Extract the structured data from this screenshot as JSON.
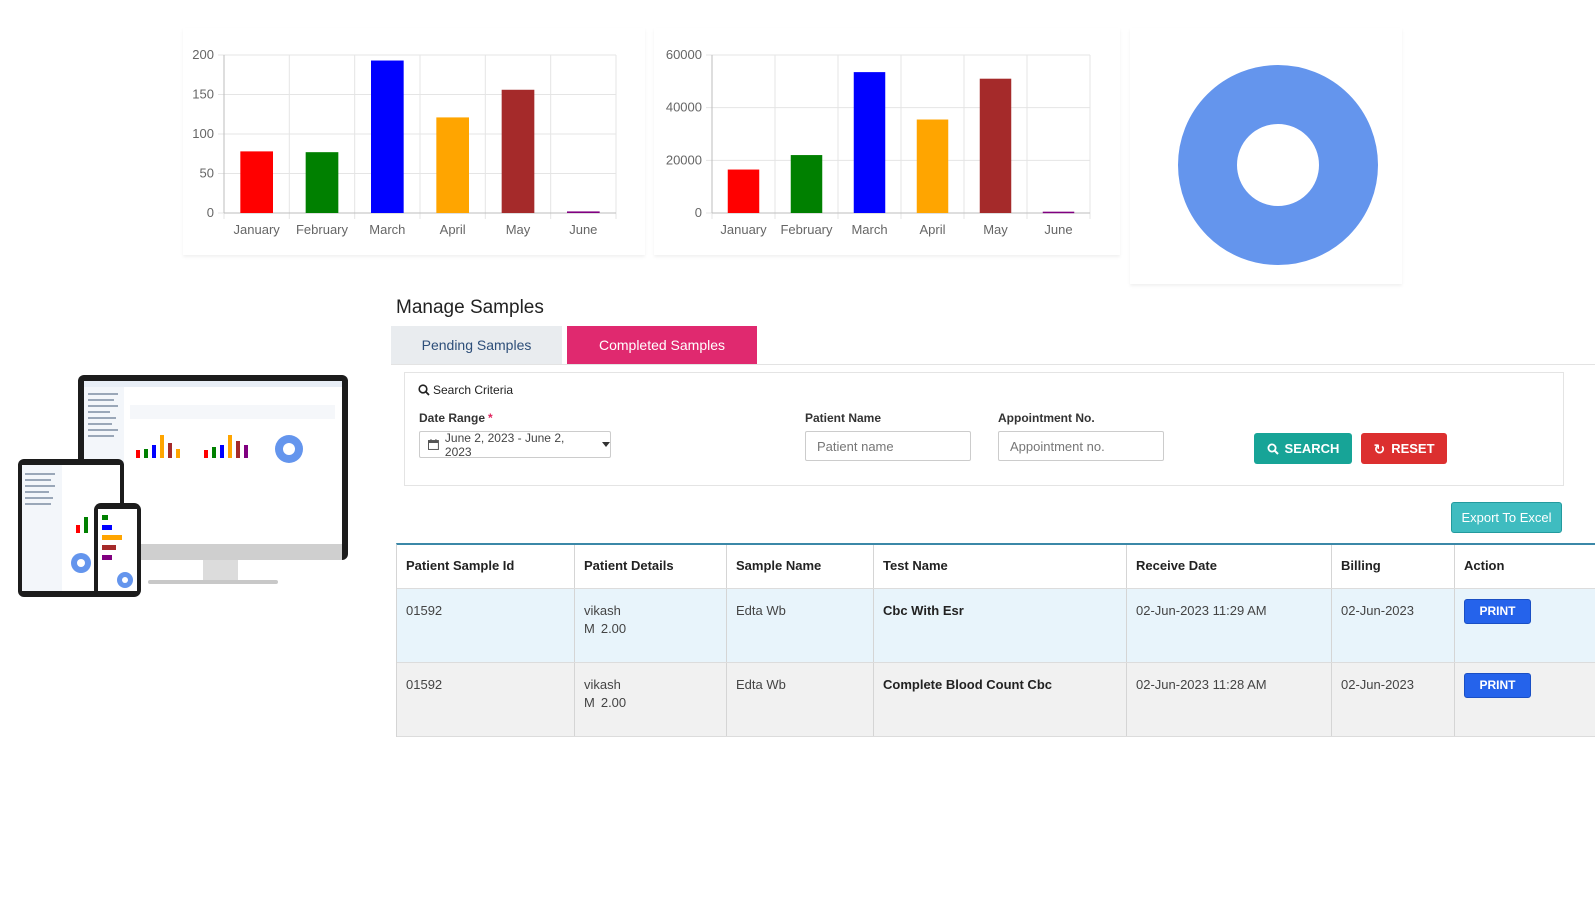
{
  "chart_data": [
    {
      "type": "bar",
      "categories": [
        "January",
        "February",
        "March",
        "April",
        "May",
        "June"
      ],
      "values": [
        78,
        77,
        193,
        121,
        156,
        2
      ],
      "colors": [
        "#ff0000",
        "#008000",
        "#0000ff",
        "#ffa500",
        "#a52a2a",
        "#800080"
      ],
      "yticks": [
        0,
        50,
        100,
        150,
        200
      ],
      "ylim": [
        0,
        200
      ],
      "grid": true
    },
    {
      "type": "bar",
      "categories": [
        "January",
        "February",
        "March",
        "April",
        "May",
        "June"
      ],
      "values": [
        16500,
        22000,
        53500,
        35500,
        51000,
        500
      ],
      "colors": [
        "#ff0000",
        "#008000",
        "#0000ff",
        "#ffa500",
        "#a52a2a",
        "#800080"
      ],
      "yticks": [
        0,
        20000,
        40000,
        60000
      ],
      "ylim": [
        0,
        60000
      ],
      "grid": true
    },
    {
      "type": "pie",
      "variant": "doughnut",
      "values": [
        100
      ],
      "colors": [
        "#6495ed"
      ]
    }
  ],
  "page": {
    "title": "Manage Samples"
  },
  "tabs": {
    "pending": "Pending Samples",
    "completed": "Completed Samples"
  },
  "search": {
    "header": "Search Criteria",
    "date_label": "Date Range",
    "date_required_mark": "*",
    "date_value": "June 2, 2023 - June 2, 2023",
    "patient_label": "Patient Name",
    "patient_placeholder": "Patient name",
    "appointment_label": "Appointment No.",
    "appointment_placeholder": "Appointment no.",
    "search_button": "SEARCH",
    "reset_button": "RESET"
  },
  "export_button": "Export To Excel",
  "table": {
    "headers": [
      "Patient Sample Id",
      "Patient Details",
      "Sample Name",
      "Test Name",
      "Receive Date",
      "Billing",
      "Action"
    ],
    "rows": [
      {
        "id": "01592",
        "patient_name": "vikash",
        "gender": "M",
        "age": "2.00",
        "sample": "Edta Wb",
        "test": "Cbc With Esr",
        "receive_date": "02-Jun-2023 11:29 AM",
        "billing": "02-Jun-2023",
        "action": "PRINT"
      },
      {
        "id": "01592",
        "patient_name": "vikash",
        "gender": "M",
        "age": "2.00",
        "sample": "Edta Wb",
        "test": "Complete Blood Count Cbc",
        "receive_date": "02-Jun-2023 11:28 AM",
        "billing": "02-Jun-2023",
        "action": "PRINT"
      }
    ]
  },
  "icons": {
    "search": "search-icon",
    "calendar": "calendar-icon",
    "reset": "refresh-icon",
    "dropdown": "caret-down-icon"
  }
}
